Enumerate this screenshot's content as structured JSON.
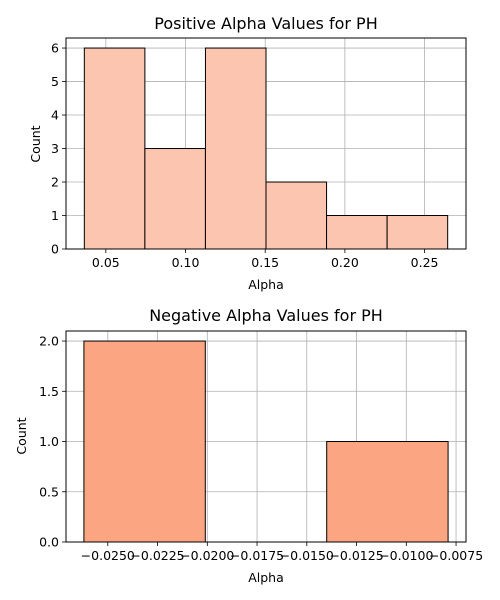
{
  "chart_data": [
    {
      "type": "bar",
      "title": "Positive Alpha Values for PH",
      "xlabel": "Alpha",
      "ylabel": "Count",
      "bin_edges": [
        0.0365,
        0.0745,
        0.1125,
        0.1505,
        0.1885,
        0.2265,
        0.2645
      ],
      "values": [
        6,
        3,
        6,
        2,
        1,
        1
      ],
      "xlim": [
        0.025,
        0.276
      ],
      "ylim": [
        0,
        6.3
      ],
      "xticks": [
        0.05,
        0.1,
        0.15,
        0.2,
        0.25
      ],
      "xtick_labels": [
        "0.05",
        "0.10",
        "0.15",
        "0.20",
        "0.25"
      ],
      "yticks": [
        0,
        1,
        2,
        3,
        4,
        5,
        6
      ],
      "ytick_labels": [
        "0",
        "1",
        "2",
        "3",
        "4",
        "5",
        "6"
      ],
      "grid": true,
      "bar_color": "#fcc5b0",
      "edge_color": "#000000"
    },
    {
      "type": "bar",
      "title": "Negative Alpha Values for PH",
      "xlabel": "Alpha",
      "ylabel": "Count",
      "bin_edges": [
        -0.0262,
        -0.0201,
        -0.014,
        -0.0079
      ],
      "values": [
        2,
        0,
        1
      ],
      "xlim": [
        -0.0271,
        -0.007
      ],
      "ylim": [
        0,
        2.1
      ],
      "xticks": [
        -0.025,
        -0.0225,
        -0.02,
        -0.0175,
        -0.015,
        -0.0125,
        -0.01,
        -0.0075
      ],
      "xtick_labels": [
        "−0.0250",
        "−0.0225",
        "−0.0200",
        "−0.0175",
        "−0.0150",
        "−0.0125",
        "−0.0100",
        "−0.0075"
      ],
      "yticks": [
        0,
        0.5,
        1,
        1.5,
        2
      ],
      "ytick_labels": [
        "0.0",
        "0.5",
        "1.0",
        "1.5",
        "2.0"
      ],
      "grid": true,
      "bar_color": "#fca583",
      "edge_color": "#000000"
    }
  ]
}
